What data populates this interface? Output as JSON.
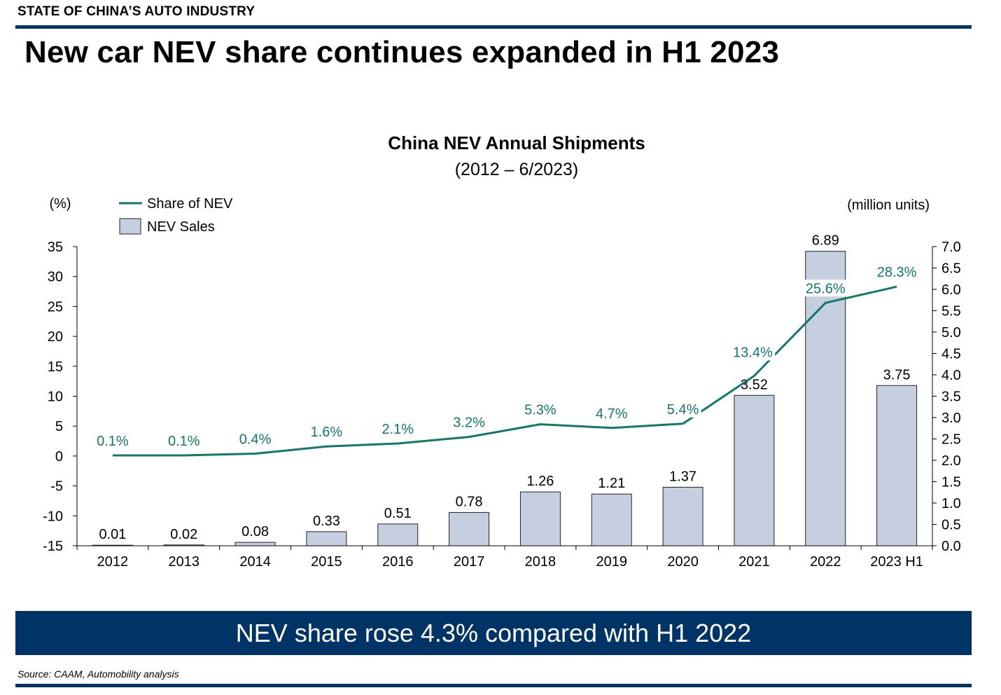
{
  "header": {
    "section_label": "STATE OF CHINA’S AUTO INDUSTRY",
    "headline": "New car NEV share continues expanded in H1 2023"
  },
  "footer": {
    "banner": "NEV share rose 4.3% compared with H1 2022",
    "source": "Source: CAAM, Automobility analysis"
  },
  "colors": {
    "bar_fill": "#c5cfe0",
    "bar_stroke": "#222222",
    "line": "#0f7a6c",
    "brand_navy": "#003366"
  },
  "chart_data": {
    "type": "bar",
    "title": "China NEV Annual Shipments",
    "subtitle": "(2012 – 6/2023)",
    "y_left_unit": "(%)",
    "y_right_unit": "(million units)",
    "categories": [
      "2012",
      "2013",
      "2014",
      "2015",
      "2016",
      "2017",
      "2018",
      "2019",
      "2020",
      "2021",
      "2022",
      "2023 H1"
    ],
    "series": [
      {
        "name": "NEV Sales",
        "type": "bar",
        "axis": "right",
        "values": [
          0.01,
          0.02,
          0.08,
          0.33,
          0.51,
          0.78,
          1.26,
          1.21,
          1.37,
          3.52,
          6.89,
          3.75
        ],
        "labels": [
          "0.01",
          "0.02",
          "0.08",
          "0.33",
          "0.51",
          "0.78",
          "1.26",
          "1.21",
          "1.37",
          "3.52",
          "6.89",
          "3.75"
        ]
      },
      {
        "name": "Share of NEV",
        "type": "line",
        "axis": "left",
        "values": [
          0.1,
          0.1,
          0.4,
          1.6,
          2.1,
          3.2,
          5.3,
          4.7,
          5.4,
          13.4,
          25.6,
          28.3
        ],
        "labels": [
          "0.1%",
          "0.1%",
          "0.4%",
          "1.6%",
          "2.1%",
          "3.2%",
          "5.3%",
          "4.7%",
          "5.4%",
          "13.4%",
          "25.6%",
          "28.3%"
        ]
      }
    ],
    "y_left": {
      "min": -15,
      "max": 35,
      "ticks": [
        "35",
        "30",
        "25",
        "20",
        "15",
        "10",
        "5",
        "0",
        "-5",
        "-10",
        "-15"
      ]
    },
    "y_right": {
      "min": 0,
      "max": 7,
      "ticks": [
        "7.0",
        "6.5",
        "6.0",
        "5.5",
        "5.0",
        "4.5",
        "4.0",
        "3.5",
        "3.0",
        "2.5",
        "2.0",
        "1.5",
        "1.0",
        "0.5",
        "0.0"
      ]
    },
    "legend": {
      "position": "top-left"
    },
    "grid": false
  }
}
